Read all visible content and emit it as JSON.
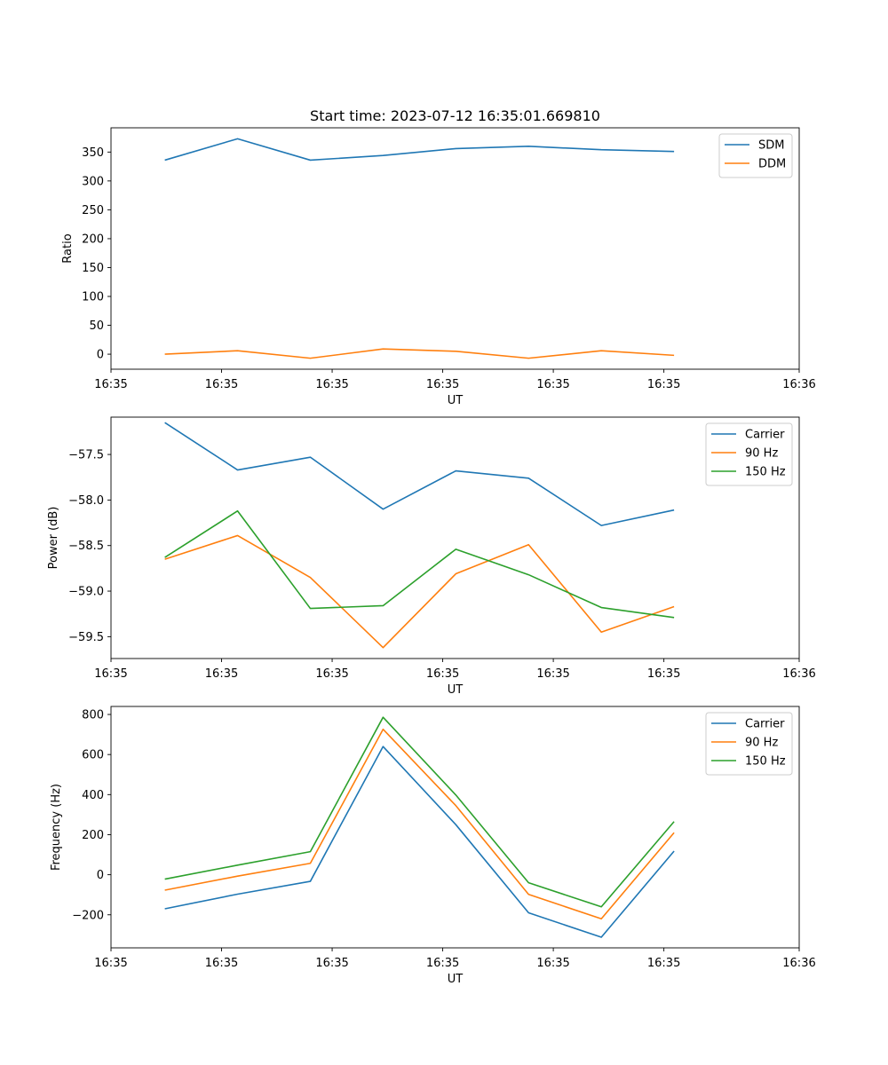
{
  "chart_data": [
    {
      "type": "line",
      "title": "Start time: 2023-07-12 16:35:01.669810",
      "xlabel": "UT",
      "ylabel": "Ratio",
      "x": [
        0,
        1,
        2,
        3,
        4,
        5,
        6,
        7
      ],
      "xlim": [
        -0.74,
        8.72
      ],
      "xticks": [
        -0.74,
        0.78,
        2.3,
        3.82,
        5.34,
        6.86,
        8.72
      ],
      "xtick_labels": [
        "16:35",
        "16:35",
        "16:35",
        "16:35",
        "16:35",
        "16:35",
        "16:36"
      ],
      "ylim": [
        -26,
        392
      ],
      "yticks": [
        0,
        50,
        100,
        150,
        200,
        250,
        300,
        350
      ],
      "ytick_labels": [
        "0",
        "50",
        "100",
        "150",
        "200",
        "250",
        "300",
        "350"
      ],
      "legend_position": "top-right",
      "series": [
        {
          "name": "SDM",
          "color": "#1f77b4",
          "values": [
            336,
            373,
            336,
            344,
            356,
            360,
            354,
            351
          ]
        },
        {
          "name": "DDM",
          "color": "#ff7f0e",
          "values": [
            0,
            6,
            -7,
            9,
            5,
            -7,
            6,
            -2
          ]
        }
      ]
    },
    {
      "type": "line",
      "title": "",
      "xlabel": "UT",
      "ylabel": "Power (dB)",
      "x": [
        0,
        1,
        2,
        3,
        4,
        5,
        6,
        7
      ],
      "xlim": [
        -0.74,
        8.72
      ],
      "xticks": [
        -0.74,
        0.78,
        2.3,
        3.82,
        5.34,
        6.86,
        8.72
      ],
      "xtick_labels": [
        "16:35",
        "16:35",
        "16:35",
        "16:35",
        "16:35",
        "16:35",
        "16:36"
      ],
      "ylim": [
        -59.74,
        -57.09
      ],
      "yticks": [
        -59.5,
        -59.0,
        -58.5,
        -58.0,
        -57.5
      ],
      "ytick_labels": [
        "−59.5",
        "−59.0",
        "−58.5",
        "−58.0",
        "−57.5"
      ],
      "legend_position": "top-right",
      "series": [
        {
          "name": "Carrier",
          "color": "#1f77b4",
          "values": [
            -57.15,
            -57.67,
            -57.53,
            -58.1,
            -57.68,
            -57.76,
            -58.28,
            -58.11
          ]
        },
        {
          "name": "90 Hz",
          "color": "#ff7f0e",
          "values": [
            -58.65,
            -58.39,
            -58.85,
            -59.62,
            -58.81,
            -58.49,
            -59.45,
            -59.17
          ]
        },
        {
          "name": "150 Hz",
          "color": "#2ca02c",
          "values": [
            -58.63,
            -58.12,
            -59.19,
            -59.16,
            -58.54,
            -58.82,
            -59.18,
            -59.29
          ]
        }
      ]
    },
    {
      "type": "line",
      "title": "",
      "xlabel": "UT",
      "ylabel": "Frequency (Hz)",
      "x": [
        0,
        1,
        2,
        3,
        4,
        5,
        6,
        7
      ],
      "xlim": [
        -0.74,
        8.72
      ],
      "xticks": [
        -0.74,
        0.78,
        2.3,
        3.82,
        5.34,
        6.86,
        8.72
      ],
      "xtick_labels": [
        "16:35",
        "16:35",
        "16:35",
        "16:35",
        "16:35",
        "16:35",
        "16:36"
      ],
      "ylim": [
        -365,
        840
      ],
      "yticks": [
        -200,
        0,
        200,
        400,
        600,
        800
      ],
      "ytick_labels": [
        "−200",
        "0",
        "200",
        "400",
        "600",
        "800"
      ],
      "legend_position": "top-right",
      "series": [
        {
          "name": "Carrier",
          "color": "#1f77b4",
          "values": [
            -170,
            -97,
            -33,
            640,
            250,
            -190,
            -312,
            118
          ]
        },
        {
          "name": "90 Hz",
          "color": "#ff7f0e",
          "values": [
            -77,
            -7,
            57,
            726,
            345,
            -98,
            -220,
            210
          ]
        },
        {
          "name": "150 Hz",
          "color": "#2ca02c",
          "values": [
            -22,
            48,
            115,
            786,
            398,
            -40,
            -160,
            265
          ]
        }
      ]
    }
  ]
}
